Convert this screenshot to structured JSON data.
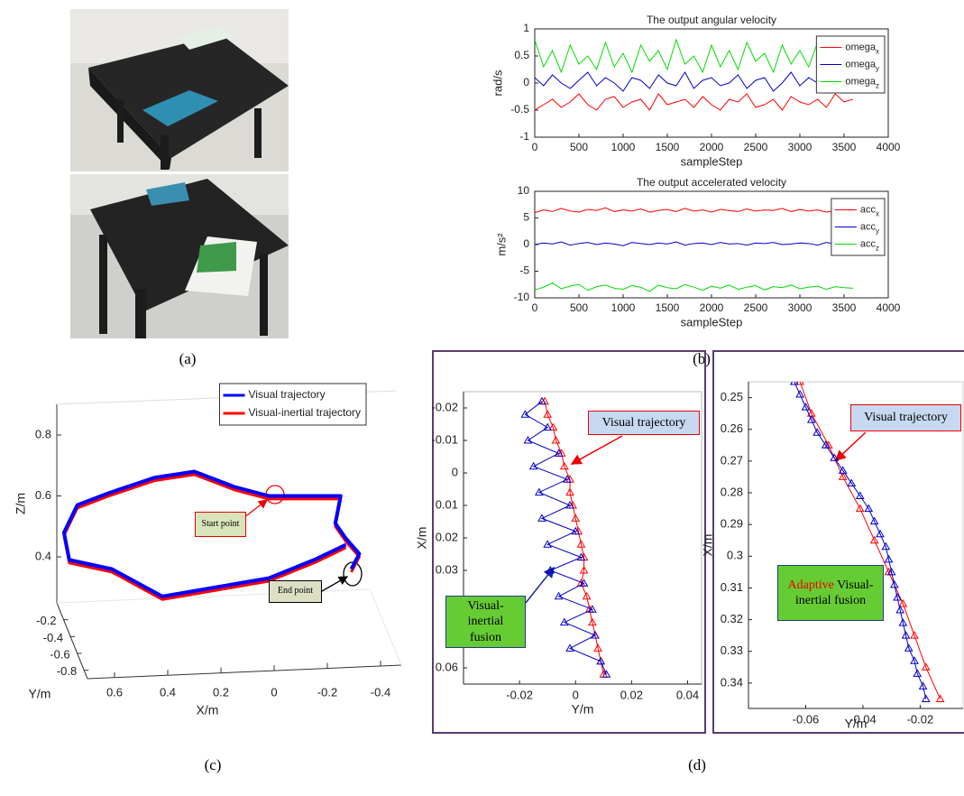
{
  "panel_labels": [
    "(a)",
    "(b)",
    "(c)",
    "(d)"
  ],
  "chart_data": [
    {
      "type": "line",
      "title": "The output angular velocity",
      "xlabel": "sampleStep",
      "ylabel": "rad/s",
      "x": [
        0,
        100,
        200,
        300,
        400,
        500,
        600,
        700,
        800,
        900,
        1000,
        1100,
        1200,
        1300,
        1400,
        1500,
        1600,
        1700,
        1800,
        1900,
        2000,
        2100,
        2200,
        2300,
        2400,
        2500,
        2600,
        2700,
        2800,
        2900,
        3000,
        3100,
        3200,
        3300,
        3400,
        3500,
        3600
      ],
      "xlim": [
        0,
        4000
      ],
      "xticks": [
        0,
        500,
        1000,
        1500,
        2000,
        2500,
        3000,
        3500,
        4000
      ],
      "ylim": [
        -1,
        1
      ],
      "yticks": [
        -1,
        -0.5,
        0,
        0.5,
        1
      ],
      "legend": "upper right",
      "series": [
        {
          "name": "omega",
          "name_subscript": "x",
          "color": "#ff0000",
          "values": [
            -0.5,
            -0.4,
            -0.3,
            -0.45,
            -0.35,
            -0.2,
            -0.4,
            -0.5,
            -0.3,
            -0.25,
            -0.45,
            -0.35,
            -0.3,
            -0.5,
            -0.2,
            -0.4,
            -0.35,
            -0.3,
            -0.45,
            -0.25,
            -0.4,
            -0.5,
            -0.3,
            -0.35,
            -0.2,
            -0.45,
            -0.4,
            -0.3,
            -0.5,
            -0.25,
            -0.35,
            -0.4,
            -0.3,
            -0.45,
            -0.2,
            -0.35,
            -0.3
          ]
        },
        {
          "name": "omega",
          "name_subscript": "y",
          "color": "#0000cc",
          "values": [
            0.1,
            -0.05,
            0.15,
            0,
            -0.1,
            0.05,
            0.2,
            -0.05,
            0.1,
            0,
            -0.15,
            0.1,
            0.05,
            -0.1,
            0.15,
            0,
            -0.05,
            0.2,
            -0.1,
            0.05,
            0.1,
            -0.05,
            0,
            0.15,
            -0.1,
            0.05,
            0.1,
            -0.15,
            0,
            0.2,
            -0.05,
            0.1,
            0,
            -0.1,
            0.15,
            0.05,
            -0.05
          ]
        },
        {
          "name": "omega",
          "name_subscript": "z",
          "color": "#00dd00",
          "values": [
            0.8,
            0.3,
            0.6,
            0.2,
            0.7,
            0.35,
            0.5,
            0.25,
            0.75,
            0.3,
            0.55,
            0.2,
            0.7,
            0.4,
            0.6,
            0.25,
            0.8,
            0.35,
            0.5,
            0.2,
            0.7,
            0.3,
            0.6,
            0.25,
            0.75,
            0.4,
            0.55,
            0.2,
            0.7,
            0.35,
            0.6,
            0.3,
            0.75,
            0.25,
            0.5,
            0.3,
            0.6
          ]
        }
      ]
    },
    {
      "type": "line",
      "title": "The output accelerated velocity",
      "xlabel": "sampleStep",
      "ylabel": "m/s²",
      "x": [
        0,
        100,
        200,
        300,
        400,
        500,
        600,
        700,
        800,
        900,
        1000,
        1100,
        1200,
        1300,
        1400,
        1500,
        1600,
        1700,
        1800,
        1900,
        2000,
        2100,
        2200,
        2300,
        2400,
        2500,
        2600,
        2700,
        2800,
        2900,
        3000,
        3100,
        3200,
        3300,
        3400,
        3500,
        3600
      ],
      "xlim": [
        0,
        4000
      ],
      "xticks": [
        0,
        500,
        1000,
        1500,
        2000,
        2500,
        3000,
        3500,
        4000
      ],
      "ylim": [
        -10,
        10
      ],
      "yticks": [
        -10,
        -5,
        0,
        5,
        10
      ],
      "legend": "upper right",
      "series": [
        {
          "name": "acc",
          "name_subscript": "x",
          "color": "#ff0000",
          "values": [
            6,
            6.5,
            6.2,
            6.8,
            6.3,
            6.1,
            6.6,
            6.4,
            6.9,
            6.2,
            6.5,
            6.3,
            6.7,
            6.1,
            6.4,
            6.6,
            6.2,
            6.8,
            6.3,
            6.5,
            6.1,
            6.6,
            6.4,
            6.2,
            6.7,
            6.3,
            6.5,
            6.4,
            6.8,
            6.2,
            6.6,
            6.3,
            6.5,
            6.1,
            6.4,
            6.6,
            6.3
          ]
        },
        {
          "name": "acc",
          "name_subscript": "y",
          "color": "#0000cc",
          "values": [
            0,
            0.3,
            0.1,
            0.5,
            -0.1,
            0.2,
            0.4,
            0,
            0.3,
            0.1,
            -0.2,
            0.4,
            0.2,
            0,
            0.3,
            0.1,
            0.5,
            -0.1,
            0.2,
            0.3,
            0,
            0.4,
            0.1,
            0.2,
            -0.1,
            0.3,
            0.2,
            0.4,
            0,
            0.1,
            0.3,
            0.2,
            -0.1,
            0.4,
            0.1,
            0.2,
            0
          ]
        },
        {
          "name": "acc",
          "name_subscript": "z",
          "color": "#00dd00",
          "values": [
            -8.5,
            -8,
            -7.2,
            -8.3,
            -7.8,
            -7.5,
            -8.6,
            -7.9,
            -7.6,
            -8.2,
            -8.4,
            -7.7,
            -8,
            -8.8,
            -7.6,
            -8.1,
            -8.3,
            -7.5,
            -8,
            -8.6,
            -7.8,
            -8.2,
            -7.6,
            -8.4,
            -8,
            -7.7,
            -8.5,
            -7.9,
            -8.1,
            -7.6,
            -8.3,
            -8,
            -7.8,
            -8.4,
            -7.9,
            -8.1,
            -8.2
          ]
        }
      ]
    },
    {
      "type": "line3d",
      "xlabel": "X/m",
      "ylabel": "Y/m",
      "zlabel": "Z/m",
      "xlim": [
        0.8,
        -0.5
      ],
      "xticks": [
        0.6,
        0.4,
        0.2,
        0,
        -0.2,
        -0.4
      ],
      "ylim": [
        0,
        -0.9
      ],
      "yticks": [
        -0.2,
        -0.4,
        -0.6,
        -0.8
      ],
      "zlim": [
        0.25,
        0.9
      ],
      "zticks": [
        0.4,
        0.6,
        0.8
      ],
      "legend": "upper right",
      "line_width": 4,
      "series": [
        {
          "name": "Visual trajectory",
          "color": "#0000ff",
          "x": [
            -0.29,
            -0.32,
            -0.27,
            -0.23,
            -0.25,
            -0.12,
            0.02,
            0.15,
            0.3,
            0.45,
            0.62,
            0.74,
            0.79,
            0.77,
            0.61,
            0.42,
            0.22,
            0.02,
            -0.15,
            -0.27
          ],
          "z": [
            0.36,
            0.41,
            0.46,
            0.51,
            0.6,
            0.6,
            0.6,
            0.63,
            0.68,
            0.66,
            0.61,
            0.57,
            0.48,
            0.39,
            0.36,
            0.27,
            0.3,
            0.33,
            0.39,
            0.44
          ]
        },
        {
          "name": "Visual-inertial trajectory",
          "color": "#ff0000",
          "x": [
            -0.29,
            -0.32,
            -0.27,
            -0.23,
            -0.25,
            -0.12,
            0.02,
            0.15,
            0.3,
            0.45,
            0.62,
            0.74,
            0.79,
            0.77,
            0.61,
            0.42,
            0.22,
            0.02,
            -0.15,
            -0.27
          ],
          "z": [
            0.35,
            0.4,
            0.45,
            0.5,
            0.59,
            0.59,
            0.59,
            0.62,
            0.67,
            0.65,
            0.6,
            0.56,
            0.47,
            0.38,
            0.35,
            0.26,
            0.29,
            0.32,
            0.38,
            0.43
          ]
        }
      ],
      "annotations": [
        {
          "text": "Start point"
        },
        {
          "text": "End point"
        }
      ]
    },
    {
      "type": "line",
      "xlabel": "Y/m",
      "ylabel": "X/m",
      "y_reversed": true,
      "xlim": [
        -0.04,
        0.045
      ],
      "xticks": [
        -0.02,
        0,
        0.02,
        0.04
      ],
      "ylim": [
        -0.025,
        0.065
      ],
      "yticks": [
        -0.02,
        -0.01,
        0,
        0.01,
        0.02,
        0.03,
        0.06
      ],
      "series": [
        {
          "color": "#ff0000",
          "marker": "triangle",
          "x": [
            -0.011,
            -0.01,
            -0.008,
            -0.007,
            -0.005,
            -0.004,
            -0.002,
            -0.002,
            -0.001,
            0,
            0.001,
            0.002,
            0.003,
            0.003,
            0.002,
            0.004,
            0.005,
            0.006,
            0.007,
            0.008,
            0.009,
            0.01
          ],
          "values": [
            -0.022,
            -0.018,
            -0.014,
            -0.01,
            -0.006,
            -0.002,
            0.002,
            0.006,
            0.01,
            0.014,
            0.018,
            0.022,
            0.026,
            0.03,
            0.034,
            0.038,
            0.042,
            0.046,
            0.05,
            0.054,
            0.058,
            0.062
          ]
        },
        {
          "color": "#0000cc",
          "marker": "triangle",
          "x": [
            -0.012,
            -0.018,
            -0.01,
            -0.017,
            -0.006,
            -0.015,
            -0.003,
            -0.013,
            -0.002,
            -0.012,
            0,
            -0.01,
            0.002,
            -0.009,
            0.003,
            -0.006,
            0.006,
            -0.004,
            0.007,
            -0.002,
            0.009,
            0.011
          ],
          "values": [
            -0.022,
            -0.018,
            -0.014,
            -0.01,
            -0.006,
            -0.002,
            0.002,
            0.006,
            0.01,
            0.014,
            0.018,
            0.022,
            0.026,
            0.03,
            0.034,
            0.038,
            0.042,
            0.046,
            0.05,
            0.054,
            0.058,
            0.062
          ]
        }
      ],
      "annotations": [
        {
          "text": "Visual trajectory"
        },
        {
          "text": "Visual-inertial fusion"
        }
      ]
    },
    {
      "type": "line",
      "xlabel": "Y/m",
      "ylabel": "X/m",
      "y_reversed": true,
      "xlim": [
        -0.08,
        -0.005
      ],
      "xticks": [
        -0.06,
        -0.04,
        -0.02
      ],
      "ylim": [
        0.245,
        0.348
      ],
      "yticks": [
        0.25,
        0.26,
        0.27,
        0.28,
        0.29,
        0.3,
        0.31,
        0.32,
        0.33,
        0.34
      ],
      "series": [
        {
          "color": "#ff0000",
          "marker": "triangle",
          "x": [
            -0.062,
            -0.058,
            -0.052,
            -0.047,
            -0.041,
            -0.036,
            -0.031,
            -0.026,
            -0.022,
            -0.018,
            -0.013
          ],
          "values": [
            0.245,
            0.255,
            0.265,
            0.275,
            0.285,
            0.295,
            0.305,
            0.315,
            0.325,
            0.335,
            0.345
          ]
        },
        {
          "color": "#0000cc",
          "marker": "triangle",
          "x": [
            -0.064,
            -0.062,
            -0.06,
            -0.058,
            -0.056,
            -0.053,
            -0.05,
            -0.047,
            -0.044,
            -0.041,
            -0.038,
            -0.036,
            -0.034,
            -0.032,
            -0.031,
            -0.03,
            -0.029,
            -0.028,
            -0.027,
            -0.026,
            -0.025,
            -0.024,
            -0.022,
            -0.021,
            -0.019,
            -0.018
          ],
          "values": [
            0.245,
            0.249,
            0.253,
            0.257,
            0.261,
            0.265,
            0.269,
            0.273,
            0.277,
            0.281,
            0.285,
            0.289,
            0.293,
            0.297,
            0.301,
            0.305,
            0.309,
            0.313,
            0.317,
            0.321,
            0.325,
            0.329,
            0.333,
            0.337,
            0.341,
            0.345
          ]
        }
      ],
      "annotations": [
        {
          "text": "Visual trajectory"
        },
        {
          "highlight": "Adaptive",
          "text": "Visual-inertial fusion"
        }
      ]
    }
  ]
}
